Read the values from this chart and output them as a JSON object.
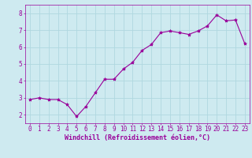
{
  "x": [
    0,
    1,
    2,
    3,
    4,
    5,
    6,
    7,
    8,
    9,
    10,
    11,
    12,
    13,
    14,
    15,
    16,
    17,
    18,
    19,
    20,
    21,
    22,
    23
  ],
  "y": [
    2.9,
    3.0,
    2.9,
    2.9,
    2.6,
    1.9,
    2.5,
    3.3,
    4.1,
    4.1,
    4.7,
    5.1,
    5.8,
    6.15,
    6.85,
    6.95,
    6.85,
    6.75,
    6.95,
    7.25,
    7.9,
    7.55,
    7.6,
    6.2
  ],
  "line_color": "#990099",
  "marker": "*",
  "marker_size": 3,
  "bg_color": "#ceeaf0",
  "grid_color": "#b0d8e0",
  "xlabel": "Windchill (Refroidissement éolien,°C)",
  "xlabel_color": "#990099",
  "tick_color": "#990099",
  "spine_color": "#990099",
  "ylim": [
    1.5,
    8.5
  ],
  "xlim": [
    -0.5,
    23.5
  ],
  "yticks": [
    2,
    3,
    4,
    5,
    6,
    7,
    8
  ],
  "xticks": [
    0,
    1,
    2,
    3,
    4,
    5,
    6,
    7,
    8,
    9,
    10,
    11,
    12,
    13,
    14,
    15,
    16,
    17,
    18,
    19,
    20,
    21,
    22,
    23
  ],
  "font_family": "monospace",
  "tick_fontsize": 5.5,
  "xlabel_fontsize": 6.0,
  "linewidth": 0.8
}
